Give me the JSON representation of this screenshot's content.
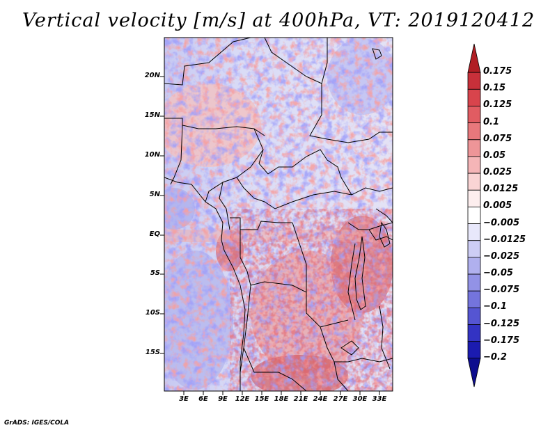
{
  "title": "Vertical velocity [m/s] at 400hPa, VT: 2019120412",
  "footer": "GrADS: IGES/COLA",
  "map": {
    "lat_labels": [
      "20N",
      "15N",
      "10N",
      "5N",
      "EQ",
      "5S",
      "10S",
      "15S"
    ],
    "lon_labels": [
      "3E",
      "6E",
      "9E",
      "12E",
      "15E",
      "18E",
      "21E",
      "24E",
      "27E",
      "30E",
      "33E"
    ]
  },
  "colorbar": {
    "levels": [
      "0.175",
      "0.15",
      "0.125",
      "0.1",
      "0.075",
      "0.05",
      "0.025",
      "0.0125",
      "0.005",
      "−0.005",
      "−0.0125",
      "−0.025",
      "−0.05",
      "−0.075",
      "−0.1",
      "−0.125",
      "−0.175",
      "−0.2"
    ],
    "colors": [
      "#b01e24",
      "#c8303a",
      "#d8444c",
      "#e15c62",
      "#e8787c",
      "#ee9598",
      "#f5b5b7",
      "#fad4d4",
      "#fdeeee",
      "#ffffff",
      "#e8e8fb",
      "#cdcdf5",
      "#b0b0ee",
      "#9292e6",
      "#7474dd",
      "#5555d2",
      "#3333c3",
      "#1b1bb0",
      "#0d0d8e"
    ]
  }
}
